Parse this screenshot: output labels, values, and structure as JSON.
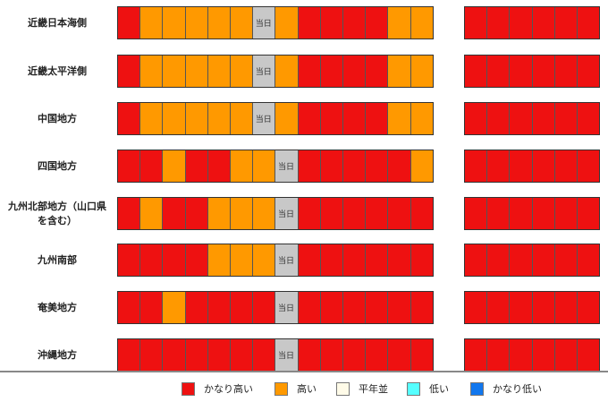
{
  "levels": {
    "R": {
      "label": "かなり高い",
      "color": "#ee1111"
    },
    "O": {
      "label": "高い",
      "color": "#ff9900"
    },
    "N": {
      "label": "平年並",
      "color": "#fffbe8"
    },
    "L": {
      "label": "低い",
      "color": "#55ffff"
    },
    "B": {
      "label": "かなり低い",
      "color": "#1177ee"
    }
  },
  "today_label": "当日",
  "today_color": "#c8c8c8",
  "regions": [
    {
      "name": "近畿日本海側",
      "cells": "ROOOOOTORRRROO",
      "extra": "RRRRRR"
    },
    {
      "name": "近畿太平洋側",
      "cells": "ROOOOOTORRRROO",
      "extra": "RRRRRR"
    },
    {
      "name": "中国地方",
      "cells": "ROOOOOTORRRROO",
      "extra": "RRRRRR"
    },
    {
      "name": "四国地方",
      "cells": "RRORROOTRRRRRO",
      "extra": "RRRRRR"
    },
    {
      "name": "九州北部地方（山口県を含む）",
      "cells": "RORROOOTRRRRRR",
      "extra": "RRRRRR"
    },
    {
      "name": "九州南部",
      "cells": "RRRROOOTRRRRRR",
      "extra": "RRRRRR"
    },
    {
      "name": "奄美地方",
      "cells": "RRORRRRTRRRRRR",
      "extra": "RRRRRR"
    },
    {
      "name": "沖縄地方",
      "cells": "RRRRRRRTRRRRRR",
      "extra": "RRRRRR"
    }
  ],
  "legend": [
    {
      "key": "R",
      "label": "かなり高い"
    },
    {
      "key": "O",
      "label": "高い"
    },
    {
      "key": "N",
      "label": "平年並"
    },
    {
      "key": "L",
      "label": "低い"
    },
    {
      "key": "B",
      "label": "かなり低い"
    }
  ]
}
